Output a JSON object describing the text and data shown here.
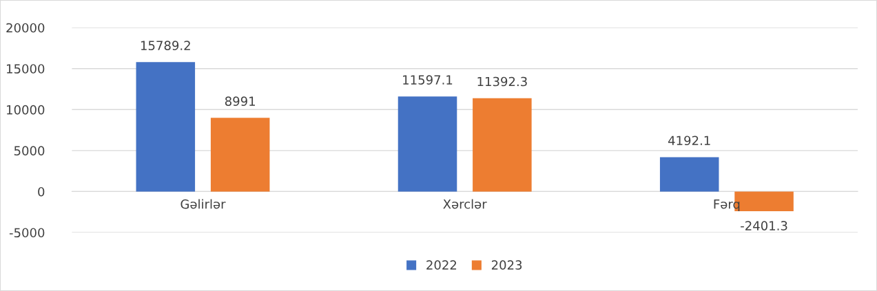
{
  "chart_data": {
    "type": "bar",
    "categories": [
      "Gəlirlər",
      "Xərclər",
      "Fərq"
    ],
    "series": [
      {
        "name": "2022",
        "color": "#4472c4",
        "values": [
          15789.2,
          11597.1,
          4192.1
        ]
      },
      {
        "name": "2023",
        "color": "#ed7d31",
        "values": [
          8991,
          11392.3,
          -2401.3
        ]
      }
    ],
    "ylim": [
      -5000,
      20000
    ],
    "yticks": [
      {
        "value": -5000,
        "label": "-5000"
      },
      0,
      5000,
      10000,
      15000,
      20000
    ],
    "grid": "y",
    "legend": "bottom",
    "data_labels": true
  }
}
